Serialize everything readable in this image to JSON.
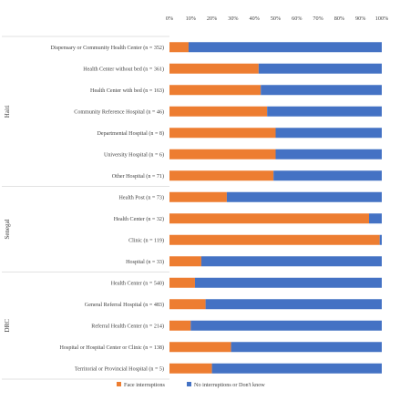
{
  "chart_data": {
    "type": "bar",
    "orientation": "horizontal",
    "stacked": true,
    "normalized": true,
    "xlim": [
      0,
      100
    ],
    "x_ticks": [
      "0%",
      "10%",
      "20%",
      "30%",
      "40%",
      "50%",
      "60%",
      "70%",
      "80%",
      "90%",
      "100%"
    ],
    "grid": false,
    "legend_position": "bottom",
    "series": [
      {
        "name": "Face interruptions",
        "color": "#ED7D31"
      },
      {
        "name": "No interruptions or Don't know",
        "color": "#4472C4"
      }
    ],
    "groups": [
      {
        "name": "Haiti",
        "categories": [
          {
            "label": "Dispensary or Community Health Center (n = 352)",
            "values": [
              9,
              91
            ]
          },
          {
            "label": "Health Center without bed (n = 361)",
            "values": [
              42,
              58
            ]
          },
          {
            "label": "Health Center with bed (n = 163)",
            "values": [
              43,
              57
            ]
          },
          {
            "label": "Community Reference Hospital (n = 46)",
            "values": [
              46,
              54
            ]
          },
          {
            "label": "Departmental Hospital (n = 8)",
            "values": [
              50,
              50
            ]
          },
          {
            "label": "University Hospital (n = 6)",
            "values": [
              50,
              50
            ]
          },
          {
            "label": "Other Hospital (n = 71)",
            "values": [
              49,
              51
            ]
          }
        ]
      },
      {
        "name": "Senegal",
        "categories": [
          {
            "label": "Health Post (n = 73)",
            "values": [
              27,
              73
            ]
          },
          {
            "label": "Health Center (n = 32)",
            "values": [
              94,
              6
            ]
          },
          {
            "label": "Clinic (n = 119)",
            "values": [
              99,
              1
            ]
          },
          {
            "label": "Hospital (n = 33)",
            "values": [
              15,
              85
            ]
          }
        ]
      },
      {
        "name": "DRC",
        "categories": [
          {
            "label": "Health Center (n = 540)",
            "values": [
              12,
              88
            ]
          },
          {
            "label": "General Referral Hospital (n = 483)",
            "values": [
              17,
              83
            ]
          },
          {
            "label": "Referral Health Center (n = 214)",
            "values": [
              10,
              90
            ]
          },
          {
            "label": "Hospital or Hospital Center or Clinic (n = 138)",
            "values": [
              29,
              71
            ]
          },
          {
            "label": "Territorial or Provincial Hospital (n = 5)",
            "values": [
              20,
              80
            ]
          }
        ]
      }
    ]
  }
}
